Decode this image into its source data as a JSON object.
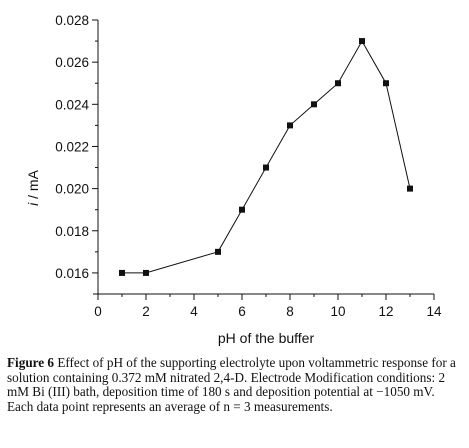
{
  "chart_data": {
    "type": "line",
    "xlabel": "pH of the buffer",
    "ylabel_italic": "i",
    "ylabel_rest": " / mA",
    "xlim": [
      0,
      14
    ],
    "ylim": [
      0.015,
      0.028
    ],
    "x_ticks": [
      {
        "v": 0,
        "label": "0"
      },
      {
        "v": 2,
        "label": "2"
      },
      {
        "v": 4,
        "label": "4"
      },
      {
        "v": 6,
        "label": "6"
      },
      {
        "v": 8,
        "label": "8"
      },
      {
        "v": 10,
        "label": "10"
      },
      {
        "v": 12,
        "label": "12"
      },
      {
        "v": 14,
        "label": "14"
      }
    ],
    "y_ticks": [
      {
        "v": 0.016,
        "label": "0.016"
      },
      {
        "v": 0.018,
        "label": "0.018"
      },
      {
        "v": 0.02,
        "label": "0.020"
      },
      {
        "v": 0.022,
        "label": "0.022"
      },
      {
        "v": 0.024,
        "label": "0.024"
      },
      {
        "v": 0.026,
        "label": "0.026"
      },
      {
        "v": 0.028,
        "label": "0.028"
      }
    ],
    "grid": false,
    "marker": "square",
    "line_color": "#111111",
    "x": [
      1,
      2,
      5,
      6,
      7,
      8,
      9,
      10,
      11,
      12,
      13
    ],
    "y": [
      0.016,
      0.016,
      0.017,
      0.019,
      0.021,
      0.023,
      0.024,
      0.025,
      0.027,
      0.025,
      0.02
    ]
  },
  "caption": {
    "label": "Figure 6",
    "text": "  Effect of pH of the supporting electrolyte upon voltammetric response for a solution containing 0.372 mM nitrated 2,4-D. Electrode Modification conditions: 2 mM Bi (III) bath, deposition time of 180 s and deposition potential at −1050 mV. Each data point represents an average of n = 3 measurements."
  }
}
